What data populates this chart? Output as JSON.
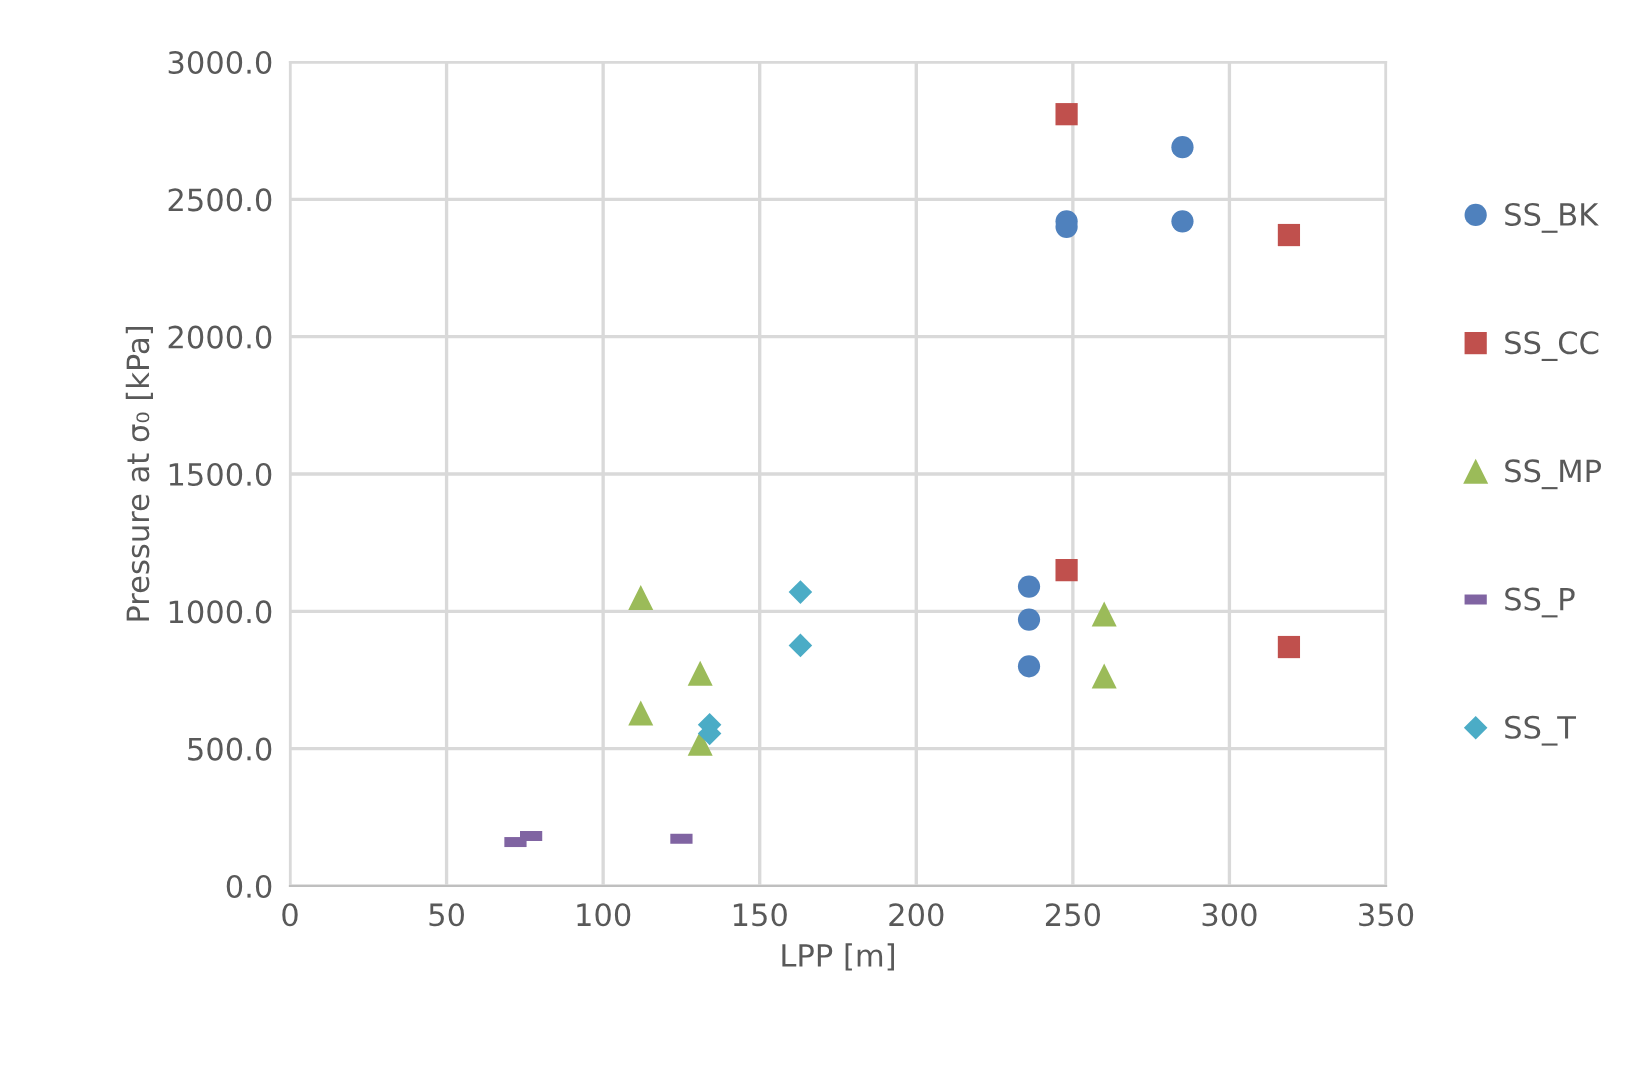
{
  "chart_data": {
    "type": "scatter",
    "xlabel": "LPP [m]",
    "ylabel": "Pressure at σ₀ [kPa]",
    "xlim": [
      0,
      350
    ],
    "xticks": [
      0,
      50,
      100,
      150,
      200,
      250,
      300,
      350
    ],
    "ylim": [
      0,
      3000
    ],
    "yticks": [
      {
        "value": 0,
        "label": "0.0"
      },
      {
        "value": 500,
        "label": "500.0"
      },
      {
        "value": 1000,
        "label": "1000.0"
      },
      {
        "value": 1500,
        "label": "1500.0"
      },
      {
        "value": 2000,
        "label": "2000.0"
      },
      {
        "value": 2500,
        "label": "2500.0"
      },
      {
        "value": 3000,
        "label": "3000.0"
      }
    ],
    "grid": true,
    "legend": "right",
    "series": [
      {
        "name": "SS_BK",
        "color": "#4f81bd",
        "marker": "circle",
        "x": [
          248,
          248,
          285,
          285,
          236,
          236,
          236
        ],
        "values": [
          2420,
          2400,
          2690,
          2420,
          1090,
          970,
          800
        ]
      },
      {
        "name": "SS_CC",
        "color": "#c0504d",
        "marker": "square",
        "x": [
          248,
          319,
          248,
          319
        ],
        "values": [
          2810,
          2370,
          1150,
          870
        ]
      },
      {
        "name": "SS_MP",
        "color": "#9bbb59",
        "marker": "triangle",
        "x": [
          112,
          131,
          112,
          131,
          260,
          260
        ],
        "values": [
          1050,
          775,
          630,
          520,
          990,
          765
        ]
      },
      {
        "name": "SS_P",
        "color": "#8064a2",
        "x": [
          72,
          77,
          125
        ],
        "values": [
          160,
          182,
          172
        ]
      },
      {
        "name": "SS_T",
        "color": "#4bacc6",
        "marker": "diamond",
        "x": [
          134,
          134,
          163,
          163
        ],
        "values": [
          587,
          555,
          1070,
          876
        ]
      }
    ]
  }
}
